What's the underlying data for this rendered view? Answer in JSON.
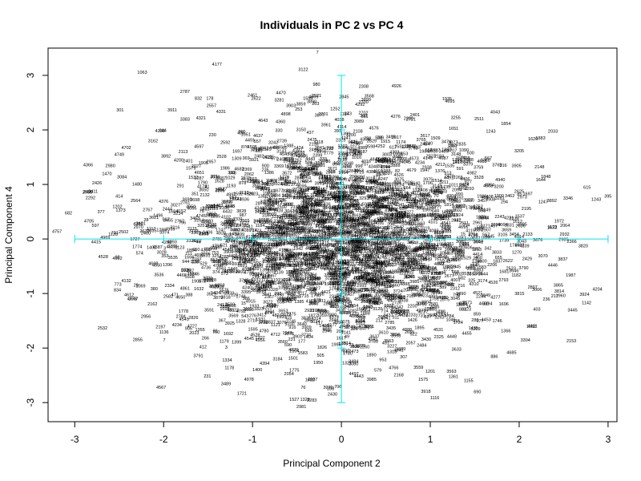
{
  "chart_data": {
    "type": "scatter",
    "title": "Individuals in PC 2 vs PC 4",
    "xlabel": "Principal Component 2",
    "ylabel": "Principal Component 4",
    "xlim": [
      -3.3,
      3.1
    ],
    "ylim": [
      -3.35,
      3.5
    ],
    "x_ticks": [
      "-3",
      "-2",
      "-1",
      "0",
      "1",
      "2",
      "3"
    ],
    "y_ticks": [
      "-3",
      "-2",
      "-1",
      "0",
      "1",
      "2",
      "3"
    ],
    "grid": false,
    "crosshair_color": "#00e5ee",
    "crosshair": {
      "x_range": [
        -3,
        3
      ],
      "y_range": [
        -3,
        3
      ],
      "x_ticks": [
        -3,
        -2,
        -1,
        0,
        1,
        2,
        3
      ],
      "y_ticks": [
        -3,
        -2,
        -1,
        0,
        1,
        2,
        3
      ]
    },
    "labelled_points": [
      {
        "label": "7",
        "x": -0.27,
        "y": 3.4
      },
      {
        "label": "4177",
        "x": -1.4,
        "y": 3.18
      },
      {
        "label": "3122",
        "x": -0.43,
        "y": 3.08
      },
      {
        "label": "980",
        "x": -0.28,
        "y": 2.81
      },
      {
        "label": "2308",
        "x": 0.25,
        "y": 2.77
      },
      {
        "label": "4926",
        "x": 0.62,
        "y": 2.78
      },
      {
        "label": "2787",
        "x": -1.76,
        "y": 2.68
      },
      {
        "label": "832",
        "x": -1.61,
        "y": 2.55
      },
      {
        "label": "178",
        "x": -1.48,
        "y": 2.55
      },
      {
        "label": "2461",
        "x": -1.0,
        "y": 2.61
      },
      {
        "label": "2622",
        "x": -0.96,
        "y": 2.55
      },
      {
        "label": "2521",
        "x": -0.28,
        "y": 2.6
      },
      {
        "label": "3281",
        "x": -0.7,
        "y": 2.52
      },
      {
        "label": "4695",
        "x": 1.22,
        "y": 2.5
      },
      {
        "label": "301",
        "x": -2.49,
        "y": 2.34
      },
      {
        "label": "4043",
        "x": 1.73,
        "y": 2.3
      },
      {
        "label": "3383",
        "x": -1.76,
        "y": 2.17
      },
      {
        "label": "4321",
        "x": -1.58,
        "y": 2.19
      },
      {
        "label": "1854",
        "x": 1.85,
        "y": 2.09
      },
      {
        "label": "4238",
        "x": -2.04,
        "y": 1.96
      },
      {
        "label": "1243",
        "x": 1.68,
        "y": 1.95
      },
      {
        "label": "4702",
        "x": -2.42,
        "y": 1.65
      },
      {
        "label": "3162",
        "x": -2.12,
        "y": 1.77
      },
      {
        "label": "2980",
        "x": -2.6,
        "y": 1.32
      },
      {
        "label": "3084",
        "x": -2.47,
        "y": 1.11
      },
      {
        "label": "2426",
        "x": -2.75,
        "y": 1.0
      },
      {
        "label": "2490",
        "x": -2.85,
        "y": 0.84
      },
      {
        "label": "414",
        "x": -2.5,
        "y": 0.76
      },
      {
        "label": "1202",
        "x": -2.52,
        "y": 0.57
      },
      {
        "label": "682",
        "x": -3.07,
        "y": 0.45
      },
      {
        "label": "4705",
        "x": -2.84,
        "y": 0.3
      },
      {
        "label": "4757",
        "x": -3.2,
        "y": 0.11
      },
      {
        "label": "731",
        "x": -2.55,
        "y": 0.09
      },
      {
        "label": "4415",
        "x": -2.76,
        "y": -0.08
      },
      {
        "label": "4528",
        "x": -2.68,
        "y": -0.35
      },
      {
        "label": "4132",
        "x": -2.42,
        "y": -0.79
      },
      {
        "label": "834",
        "x": -2.52,
        "y": -0.96
      },
      {
        "label": "3205",
        "x": 2.0,
        "y": 1.59
      },
      {
        "label": "3905",
        "x": 1.97,
        "y": 1.32
      },
      {
        "label": "1848",
        "x": 2.3,
        "y": 1.12
      },
      {
        "label": "3346",
        "x": 2.55,
        "y": 0.72
      },
      {
        "label": "3820",
        "x": 2.72,
        "y": -0.15
      },
      {
        "label": "3814",
        "x": 2.45,
        "y": -0.98
      },
      {
        "label": "4204",
        "x": 2.88,
        "y": -0.95
      },
      {
        "label": "3445",
        "x": 2.6,
        "y": -1.33
      },
      {
        "label": "217",
        "x": 2.4,
        "y": -1.07
      },
      {
        "label": "4481",
        "x": 2.15,
        "y": -1.62
      },
      {
        "label": "3304",
        "x": 2.07,
        "y": -1.88
      },
      {
        "label": "2956",
        "x": -2.2,
        "y": -1.45
      },
      {
        "label": "4234",
        "x": -1.85,
        "y": -1.6
      },
      {
        "label": "905",
        "x": -1.72,
        "y": -1.67
      },
      {
        "label": "3791",
        "x": -1.61,
        "y": -2.17
      },
      {
        "label": "1178",
        "x": -1.26,
        "y": -2.39
      },
      {
        "label": "4978",
        "x": -1.04,
        "y": -2.6
      },
      {
        "label": "2054",
        "x": -0.59,
        "y": -2.5
      },
      {
        "label": "1775",
        "x": -0.53,
        "y": -2.43
      },
      {
        "label": "76",
        "x": -0.43,
        "y": -2.75
      },
      {
        "label": "3970",
        "x": -0.15,
        "y": -2.75
      },
      {
        "label": "706",
        "x": -0.04,
        "y": -2.73
      },
      {
        "label": "2430",
        "x": -0.1,
        "y": -2.87
      },
      {
        "label": "1527",
        "x": -0.53,
        "y": -2.97
      },
      {
        "label": "1328",
        "x": -0.41,
        "y": -2.97
      },
      {
        "label": "2981",
        "x": -0.45,
        "y": -3.1
      },
      {
        "label": "4497",
        "x": 0.14,
        "y": -2.5
      },
      {
        "label": "3985",
        "x": 0.34,
        "y": -2.6
      },
      {
        "label": "579",
        "x": 0.41,
        "y": -2.43
      },
      {
        "label": "3918",
        "x": 0.95,
        "y": -2.82
      },
      {
        "label": "1575",
        "x": 0.92,
        "y": -2.6
      },
      {
        "label": "1361",
        "x": 1.26,
        "y": -2.55
      },
      {
        "label": "1155",
        "x": 1.43,
        "y": -2.62
      },
      {
        "label": "690",
        "x": 1.53,
        "y": -2.83
      },
      {
        "label": "886",
        "x": 1.72,
        "y": -2.18
      }
    ]
  }
}
